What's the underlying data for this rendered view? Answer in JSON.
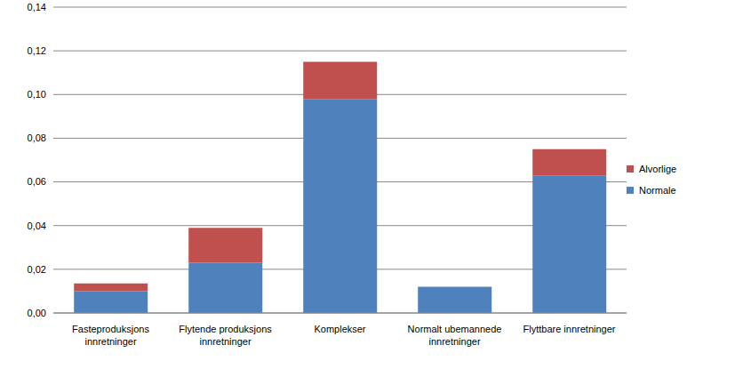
{
  "chart_data": {
    "type": "bar",
    "stacked": true,
    "grid": true,
    "legend": "right",
    "categories": [
      "Fasteproduksjons\ninnretninger",
      "Flytende produksjons\ninnretninger",
      "Komplekser",
      "Normalt ubemannede\ninnretninger",
      "Flyttbare innretninger"
    ],
    "series": [
      {
        "name": "Normale",
        "color": "#4F81BD",
        "values": [
          0.01,
          0.023,
          0.098,
          0.012,
          0.063
        ]
      },
      {
        "name": "Alvorlige",
        "color": "#C0504D",
        "values": [
          0.0035,
          0.016,
          0.017,
          0,
          0.012
        ]
      }
    ],
    "ylim": [
      0,
      0.14
    ],
    "yticks": [
      {
        "value": 0,
        "label": "0,00"
      },
      {
        "value": 0.02,
        "label": "0,02"
      },
      {
        "value": 0.04,
        "label": "0,04"
      },
      {
        "value": 0.06,
        "label": "0,06"
      },
      {
        "value": 0.08,
        "label": "0,08"
      },
      {
        "value": 0.1,
        "label": "0,10"
      },
      {
        "value": 0.12,
        "label": "0,12"
      },
      {
        "value": 0.14,
        "label": "0,14"
      }
    ]
  }
}
